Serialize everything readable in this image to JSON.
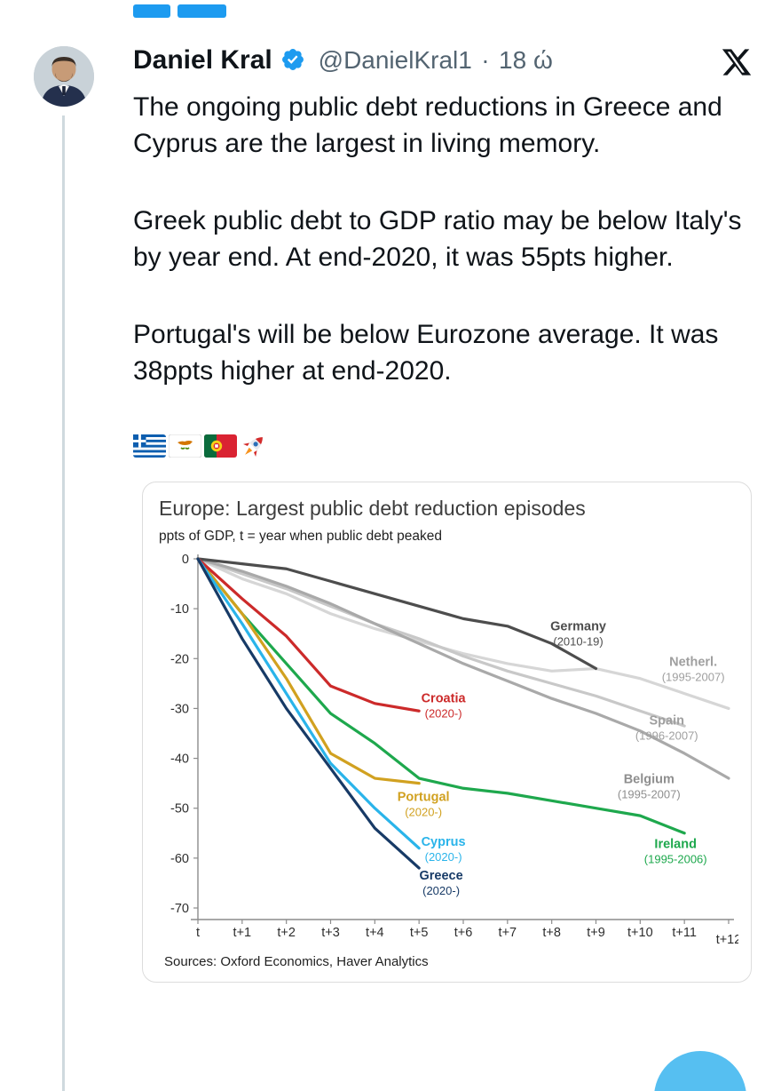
{
  "decor": {
    "chip_color": "#1d9bf0",
    "thread_line_color": "#cfd9de",
    "fab_color": "#56bff1",
    "accent_blue": "#1d9bf0",
    "text_color": "#0f1419",
    "secondary_text_color": "#536471"
  },
  "header": {
    "name": "Daniel Kral",
    "handle": "@DanielKral1",
    "separator": "·",
    "time": "18 ώ"
  },
  "tweet": {
    "paragraphs": [
      "The ongoing public debt reductions in Greece and Cyprus are the largest in living memory.",
      "Greek public debt to GDP ratio may be below Italy's by year end. At end-2020, it was 55pts higher.",
      "Portugal's will be below Eurozone average. It was 38ppts higher at end-2020."
    ],
    "emoji": "🇬🇷🇨🇾🇵🇹🚀"
  },
  "chart": {
    "title": "Europe: Largest public debt reduction episodes",
    "subtitle": "ppts of GDP, t = year when public debt peaked",
    "sources": "Sources: Oxford Economics, Haver Analytics"
  },
  "chart_data": {
    "type": "line",
    "title": "Europe: Largest public debt reduction episodes",
    "subtitle": "ppts of GDP, t = year when public debt peaked",
    "x_tick_labels": [
      "t",
      "t+1",
      "t+2",
      "t+3",
      "t+4",
      "t+5",
      "t+6",
      "t+7",
      "t+8",
      "t+9",
      "t+10",
      "t+11",
      "t+12"
    ],
    "yticks": [
      0,
      -10,
      -20,
      -30,
      -40,
      -50,
      -60,
      -70
    ],
    "ylim": [
      -70,
      0
    ],
    "xlim": [
      0,
      12
    ],
    "grid": false,
    "legend_position": "inline-labels",
    "series": [
      {
        "name": "Netherl.",
        "period": "(1995-2007)",
        "color": "#d6d6d6",
        "label_color": "#9f9f9f",
        "x": [
          0,
          1,
          2,
          3,
          4,
          5,
          6,
          7,
          8,
          9,
          10,
          11,
          12
        ],
        "values": [
          0,
          -4,
          -7,
          -11,
          -14,
          -16.5,
          -19,
          -21,
          -22.5,
          -22,
          -24,
          -27,
          -30
        ],
        "label": {
          "x": 11.2,
          "y": -21.5
        }
      },
      {
        "name": "Spain",
        "period": "(1996-2007)",
        "color": "#c8c8c8",
        "label_color": "#9f9f9f",
        "x": [
          0,
          1,
          2,
          3,
          4,
          5,
          6,
          7,
          8,
          9,
          10,
          11
        ],
        "values": [
          0,
          -3,
          -6,
          -9.5,
          -13,
          -16,
          -19.5,
          -22.5,
          -25,
          -27.5,
          -30.5,
          -33.5
        ],
        "label": {
          "x": 10.6,
          "y": -33.2
        }
      },
      {
        "name": "Belgium",
        "period": "(1995-2007)",
        "color": "#a9a9a9",
        "label_color": "#8f8f8f",
        "x": [
          0,
          1,
          2,
          3,
          4,
          5,
          6,
          7,
          8,
          9,
          10,
          11,
          12
        ],
        "values": [
          0,
          -2.5,
          -5.5,
          -9,
          -13,
          -17,
          -21,
          -24.5,
          -28,
          -31,
          -34.5,
          -39,
          -44
        ],
        "label": {
          "x": 10.2,
          "y": -45
        }
      },
      {
        "name": "Germany",
        "period": "(2010-19)",
        "color": "#4d4d4d",
        "label_color": "#4d4d4d",
        "x": [
          0,
          1,
          2,
          3,
          4,
          5,
          6,
          7,
          8,
          9
        ],
        "values": [
          0,
          -1,
          -2,
          -4.5,
          -7,
          -9.5,
          -12,
          -13.5,
          -17,
          -22
        ],
        "label": {
          "x": 8.6,
          "y": -14.3
        }
      },
      {
        "name": "Ireland",
        "period": "(1995-2006)",
        "color": "#1ea84d",
        "label_color": "#1ea84d",
        "x": [
          0,
          1,
          2,
          3,
          4,
          5,
          6,
          7,
          8,
          9,
          10,
          11
        ],
        "values": [
          0,
          -11,
          -21,
          -31,
          -37,
          -44,
          -46,
          -47,
          -48.5,
          -50,
          -51.5,
          -55
        ],
        "label": {
          "x": 10.8,
          "y": -58
        }
      },
      {
        "name": "Portugal",
        "period": "(2020-)",
        "color": "#d1a120",
        "label_color": "#d1a120",
        "x": [
          0,
          1,
          2,
          3,
          4,
          5
        ],
        "values": [
          0,
          -11,
          -24,
          -39,
          -44,
          -45
        ],
        "label": {
          "x": 5.1,
          "y": -48.5
        }
      },
      {
        "name": "Croatia",
        "period": "(2020-)",
        "color": "#cc2a2a",
        "label_color": "#cc2a2a",
        "x": [
          0,
          1,
          2,
          3,
          4,
          5
        ],
        "values": [
          0,
          -8,
          -15.5,
          -25.5,
          -29,
          -30.5
        ],
        "label": {
          "x": 5.55,
          "y": -28.8
        }
      },
      {
        "name": "Cyprus",
        "period": "(2020-)",
        "color": "#2ab4ea",
        "label_color": "#2ab4ea",
        "x": [
          0,
          1,
          2,
          3,
          4,
          5
        ],
        "values": [
          0,
          -13,
          -27,
          -41,
          -50,
          -58
        ],
        "label": {
          "x": 5.55,
          "y": -57.5
        }
      },
      {
        "name": "Greece",
        "period": "(2020-)",
        "color": "#173a66",
        "label_color": "#173a66",
        "x": [
          0,
          1,
          2,
          3,
          4,
          5
        ],
        "values": [
          0,
          -16,
          -30,
          -42,
          -54,
          -62
        ],
        "label": {
          "x": 5.5,
          "y": -64.3
        }
      }
    ]
  }
}
